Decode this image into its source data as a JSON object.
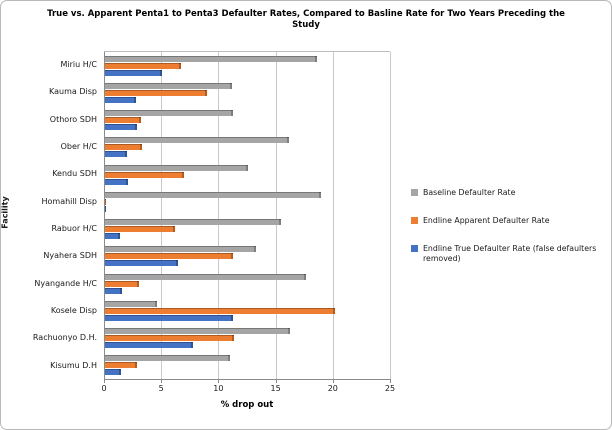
{
  "chart_data": {
    "type": "bar",
    "orientation": "horizontal",
    "title": "True vs. Apparent Penta1 to Penta3 Defaulter Rates, Compared to Basline Rate for Two Years Preceding the Study",
    "xlabel": "% drop out",
    "ylabel": "Facility",
    "xlim": [
      0,
      25
    ],
    "xticks": [
      0,
      5,
      10,
      15,
      20,
      25
    ],
    "grid": "vertical",
    "legend_position": "right",
    "categories": [
      "Miriu H/C",
      "Kauma Disp",
      "Othoro SDH",
      "Ober H/C",
      "Kendu SDH",
      "Homahill Disp",
      "Rabuor H/C",
      "Nyahera SDH",
      "Nyangande H/C",
      "Kosele Disp",
      "Rachuonyo D.H.",
      "Kisumu D.H"
    ],
    "series": [
      {
        "name": "Baseline Defaulter Rate",
        "color": "#A5A5A5",
        "edge_color": "#7F7F7F",
        "values": [
          18.6,
          11.2,
          11.3,
          16.2,
          12.6,
          19.0,
          15.5,
          13.3,
          17.7,
          4.6,
          16.3,
          11.0
        ]
      },
      {
        "name": "Endline Apparent Defaulter Rate",
        "color": "#ED7D31",
        "edge_color": "#B85C1C",
        "values": [
          6.7,
          9.0,
          3.2,
          3.3,
          7.0,
          0.2,
          6.2,
          11.3,
          3.1,
          20.2,
          11.4,
          2.9
        ]
      },
      {
        "name": "Endline True Defaulter Rate (false defaulters removed)",
        "color": "#4472C4",
        "edge_color": "#2F5597",
        "values": [
          5.1,
          2.8,
          2.9,
          2.0,
          2.1,
          0.2,
          1.4,
          6.5,
          1.6,
          11.3,
          7.8,
          1.5
        ]
      }
    ],
    "colors": {
      "gridline": "#C9C9C9",
      "axis": "#8A8A8A",
      "frame_border": "#B9B9B9"
    }
  }
}
